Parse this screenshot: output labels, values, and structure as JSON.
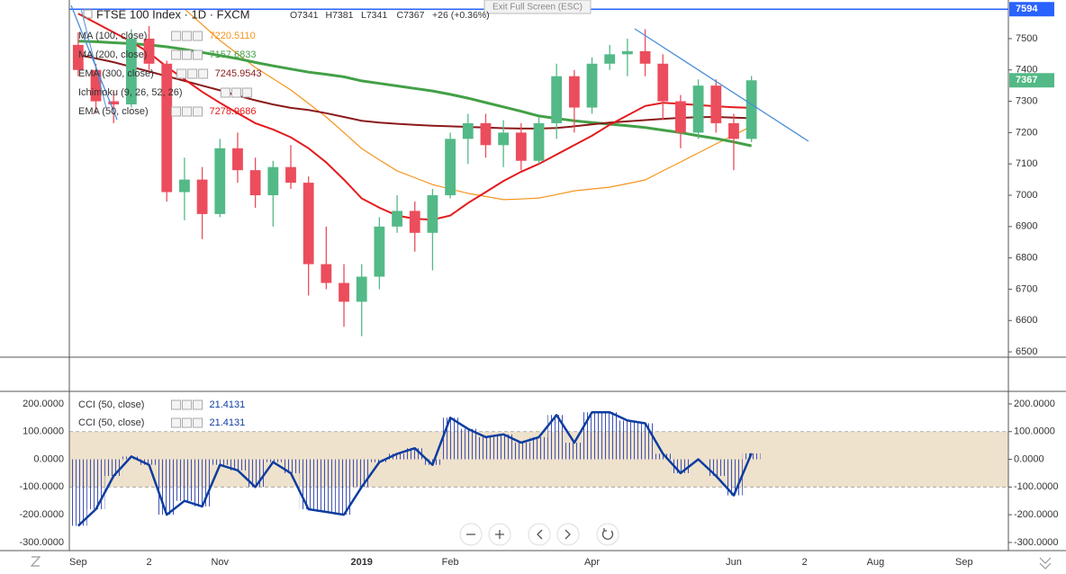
{
  "ui": {
    "exit_fullscreen": "Exit Full Screen (ESC)"
  },
  "chart_data": [
    {
      "type": "candlestick",
      "title": "FTSE 100 Index · 1D · FXCM",
      "ohlc_summary": [
        "O7341",
        "H7381",
        "L7341",
        "C7367",
        "+26 (+0.36%)"
      ],
      "categories": [
        "Sep",
        null,
        null,
        null,
        "2",
        null,
        null,
        null,
        "Nov",
        null,
        null,
        null,
        null,
        null,
        null,
        null,
        "2019",
        null,
        null,
        null,
        null,
        "Feb",
        null,
        null,
        null,
        null,
        null,
        null,
        null,
        "Apr",
        null,
        null,
        null,
        null,
        null,
        null,
        null,
        "Jun",
        null,
        null,
        null,
        "2",
        null,
        null,
        null,
        "Aug",
        null,
        null,
        null,
        null,
        "Sep",
        null,
        null
      ],
      "open": [
        7480,
        7400,
        7300,
        7290,
        7500,
        7420,
        7010,
        7050,
        6940,
        7150,
        7080,
        7000,
        7090,
        7040,
        6780,
        6720,
        6660,
        6740,
        6900,
        6950,
        6880,
        7000,
        7180,
        7230,
        7160,
        7200,
        7110,
        7230,
        7380,
        7280,
        7420,
        7450,
        7460,
        7420,
        7300,
        7200,
        7350,
        7230,
        7180,
        null,
        null,
        null,
        null,
        null,
        null,
        null,
        null,
        null,
        null,
        null,
        null,
        null,
        null
      ],
      "high": [
        7520,
        7420,
        7330,
        7530,
        7540,
        7430,
        7120,
        7090,
        7180,
        7200,
        7120,
        7110,
        7160,
        7060,
        6900,
        6780,
        6780,
        6930,
        7000,
        6980,
        7020,
        7200,
        7260,
        7260,
        7240,
        7230,
        7250,
        7420,
        7400,
        7440,
        7480,
        7500,
        7530,
        7450,
        7320,
        7370,
        7370,
        7260,
        7381,
        null,
        null,
        null,
        null,
        null,
        null,
        null,
        null,
        null,
        null,
        null,
        null,
        null,
        null
      ],
      "low": [
        7380,
        7260,
        7230,
        7280,
        7400,
        6980,
        6920,
        6860,
        6930,
        7040,
        6960,
        6900,
        7020,
        6680,
        6700,
        6580,
        6550,
        6700,
        6880,
        6820,
        6760,
        6990,
        7100,
        7120,
        7090,
        7080,
        7100,
        7180,
        7200,
        7260,
        7400,
        7380,
        7380,
        7240,
        7150,
        7180,
        7200,
        7080,
        7170,
        null,
        null,
        null,
        null,
        null,
        null,
        null,
        null,
        null,
        null,
        null,
        null,
        null,
        null
      ],
      "close": [
        7400,
        7300,
        7290,
        7500,
        7420,
        7010,
        7050,
        6940,
        7150,
        7080,
        7000,
        7090,
        7040,
        6780,
        6720,
        6660,
        6740,
        6900,
        6950,
        6880,
        7000,
        7180,
        7230,
        7160,
        7200,
        7110,
        7230,
        7380,
        7280,
        7420,
        7450,
        7460,
        7420,
        7300,
        7200,
        7350,
        7230,
        7180,
        7367,
        null,
        null,
        null,
        null,
        null,
        null,
        null,
        null,
        null,
        null,
        null,
        null,
        null,
        null
      ],
      "up_color": "#53b987",
      "down_color": "#eb4d5c",
      "series": [
        {
          "name": "MA (100, close)",
          "color": "#f7941d",
          "width": 1.2,
          "legend_value": "7220.5110",
          "values": [
            null,
            null,
            null,
            null,
            null,
            null,
            7595,
            7545,
            7494,
            7451,
            7408,
            7372,
            7336,
            7293,
            7250,
            7200,
            7149,
            7113,
            7078,
            7056,
            7034,
            7020,
            7006,
            6996,
            6986,
            6988,
            6991,
            7002,
            7014,
            7020,
            7026,
            7037,
            7049,
            7078,
            7106,
            7135,
            7164,
            7192,
            7220.511,
            null,
            null,
            null,
            null,
            null,
            null,
            null,
            null,
            null,
            null,
            null,
            null,
            null,
            null
          ]
        },
        {
          "name": "MA (200, close)",
          "color": "#43a047",
          "width": 3,
          "legend_value": "7157.6833",
          "values": [
            7492,
            7490,
            7487,
            7484,
            7480,
            7474,
            7466,
            7456,
            7446,
            7436,
            7424,
            7413,
            7403,
            7393,
            7386,
            7378,
            7365,
            7357,
            7349,
            7341,
            7333,
            7322,
            7310,
            7296,
            7282,
            7268,
            7253,
            7245,
            7238,
            7232,
            7227,
            7222,
            7216,
            7208,
            7200,
            7190,
            7181,
            7170,
            7157.6833,
            null,
            null,
            null,
            null,
            null,
            null,
            null,
            null,
            null,
            null,
            null,
            null,
            null,
            null
          ]
        },
        {
          "name": "EMA (300, close)",
          "color": "#8b1a1a",
          "width": 2,
          "legend_value": "7245.9543",
          "values": [
            7448,
            7437,
            7425,
            7410,
            7395,
            7380,
            7365,
            7350,
            7335,
            7318,
            7303,
            7290,
            7279,
            7272,
            7262,
            7250,
            7238,
            7232,
            7228,
            7225,
            7222,
            7220,
            7218,
            7216,
            7214,
            7213,
            7213,
            7215,
            7220,
            7226,
            7232,
            7236,
            7240,
            7244,
            7247,
            7249,
            7250,
            7248,
            7245.9543,
            null,
            null,
            null,
            null,
            null,
            null,
            null,
            null,
            null,
            null,
            null,
            null,
            null,
            null
          ]
        },
        {
          "name": "Ichimoku (9, 26, 52, 26)",
          "color": "#2196f3",
          "width": 0,
          "legend_value": null,
          "values": null
        },
        {
          "name": "EMA (50, close)",
          "color": "#e31a1c",
          "width": 2,
          "legend_value": "7278.9686",
          "values": [
            7580,
            7550,
            7520,
            7490,
            7455,
            7410,
            7370,
            7330,
            7295,
            7262,
            7230,
            7210,
            7185,
            7150,
            7105,
            7050,
            6990,
            6960,
            6935,
            6925,
            6922,
            6935,
            6975,
            7010,
            7045,
            7075,
            7100,
            7130,
            7160,
            7190,
            7225,
            7255,
            7285,
            7295,
            7292,
            7288,
            7284,
            7281,
            7278.9686,
            null,
            null,
            null,
            null,
            null,
            null,
            null,
            null,
            null,
            null,
            null,
            null,
            null,
            null
          ]
        }
      ],
      "ylim": [
        6483,
        7609
      ],
      "yticks": [
        6500,
        6600,
        6700,
        6800,
        6900,
        7000,
        7100,
        7200,
        7300,
        7400,
        7500
      ],
      "horizontal_line": {
        "value": 7594,
        "color": "#2962ff"
      },
      "grid": false
    },
    {
      "type": "line",
      "series": [
        {
          "name": "CCI (50, close)",
          "color": "#0d3da0",
          "values": [
            -240,
            -180,
            -60,
            10,
            -20,
            -200,
            -150,
            -170,
            -20,
            -40,
            -100,
            -10,
            -50,
            -180,
            -190,
            -200,
            -100,
            -10,
            20,
            40,
            -20,
            150,
            110,
            80,
            90,
            60,
            80,
            160,
            60,
            170,
            170,
            140,
            130,
            20,
            -50,
            0,
            -60,
            -130,
            21.4131,
            null,
            null,
            null,
            null,
            null,
            null,
            null,
            null,
            null,
            null,
            null,
            null,
            null,
            null
          ]
        }
      ],
      "legend_rows": 2,
      "band": [
        -100,
        100
      ],
      "band_color": "#efe2cc",
      "ylim": [
        -323,
        242
      ],
      "yticks": [
        {
          "value": -300,
          "label": "-300.0000"
        },
        {
          "value": -200,
          "label": "-200.0000"
        },
        {
          "value": -100,
          "label": "-100.0000"
        },
        {
          "value": 0,
          "label": "0.0000"
        },
        {
          "value": 100,
          "label": "100.0000"
        },
        {
          "value": 200,
          "label": "200.0000"
        }
      ],
      "grid": false
    }
  ]
}
